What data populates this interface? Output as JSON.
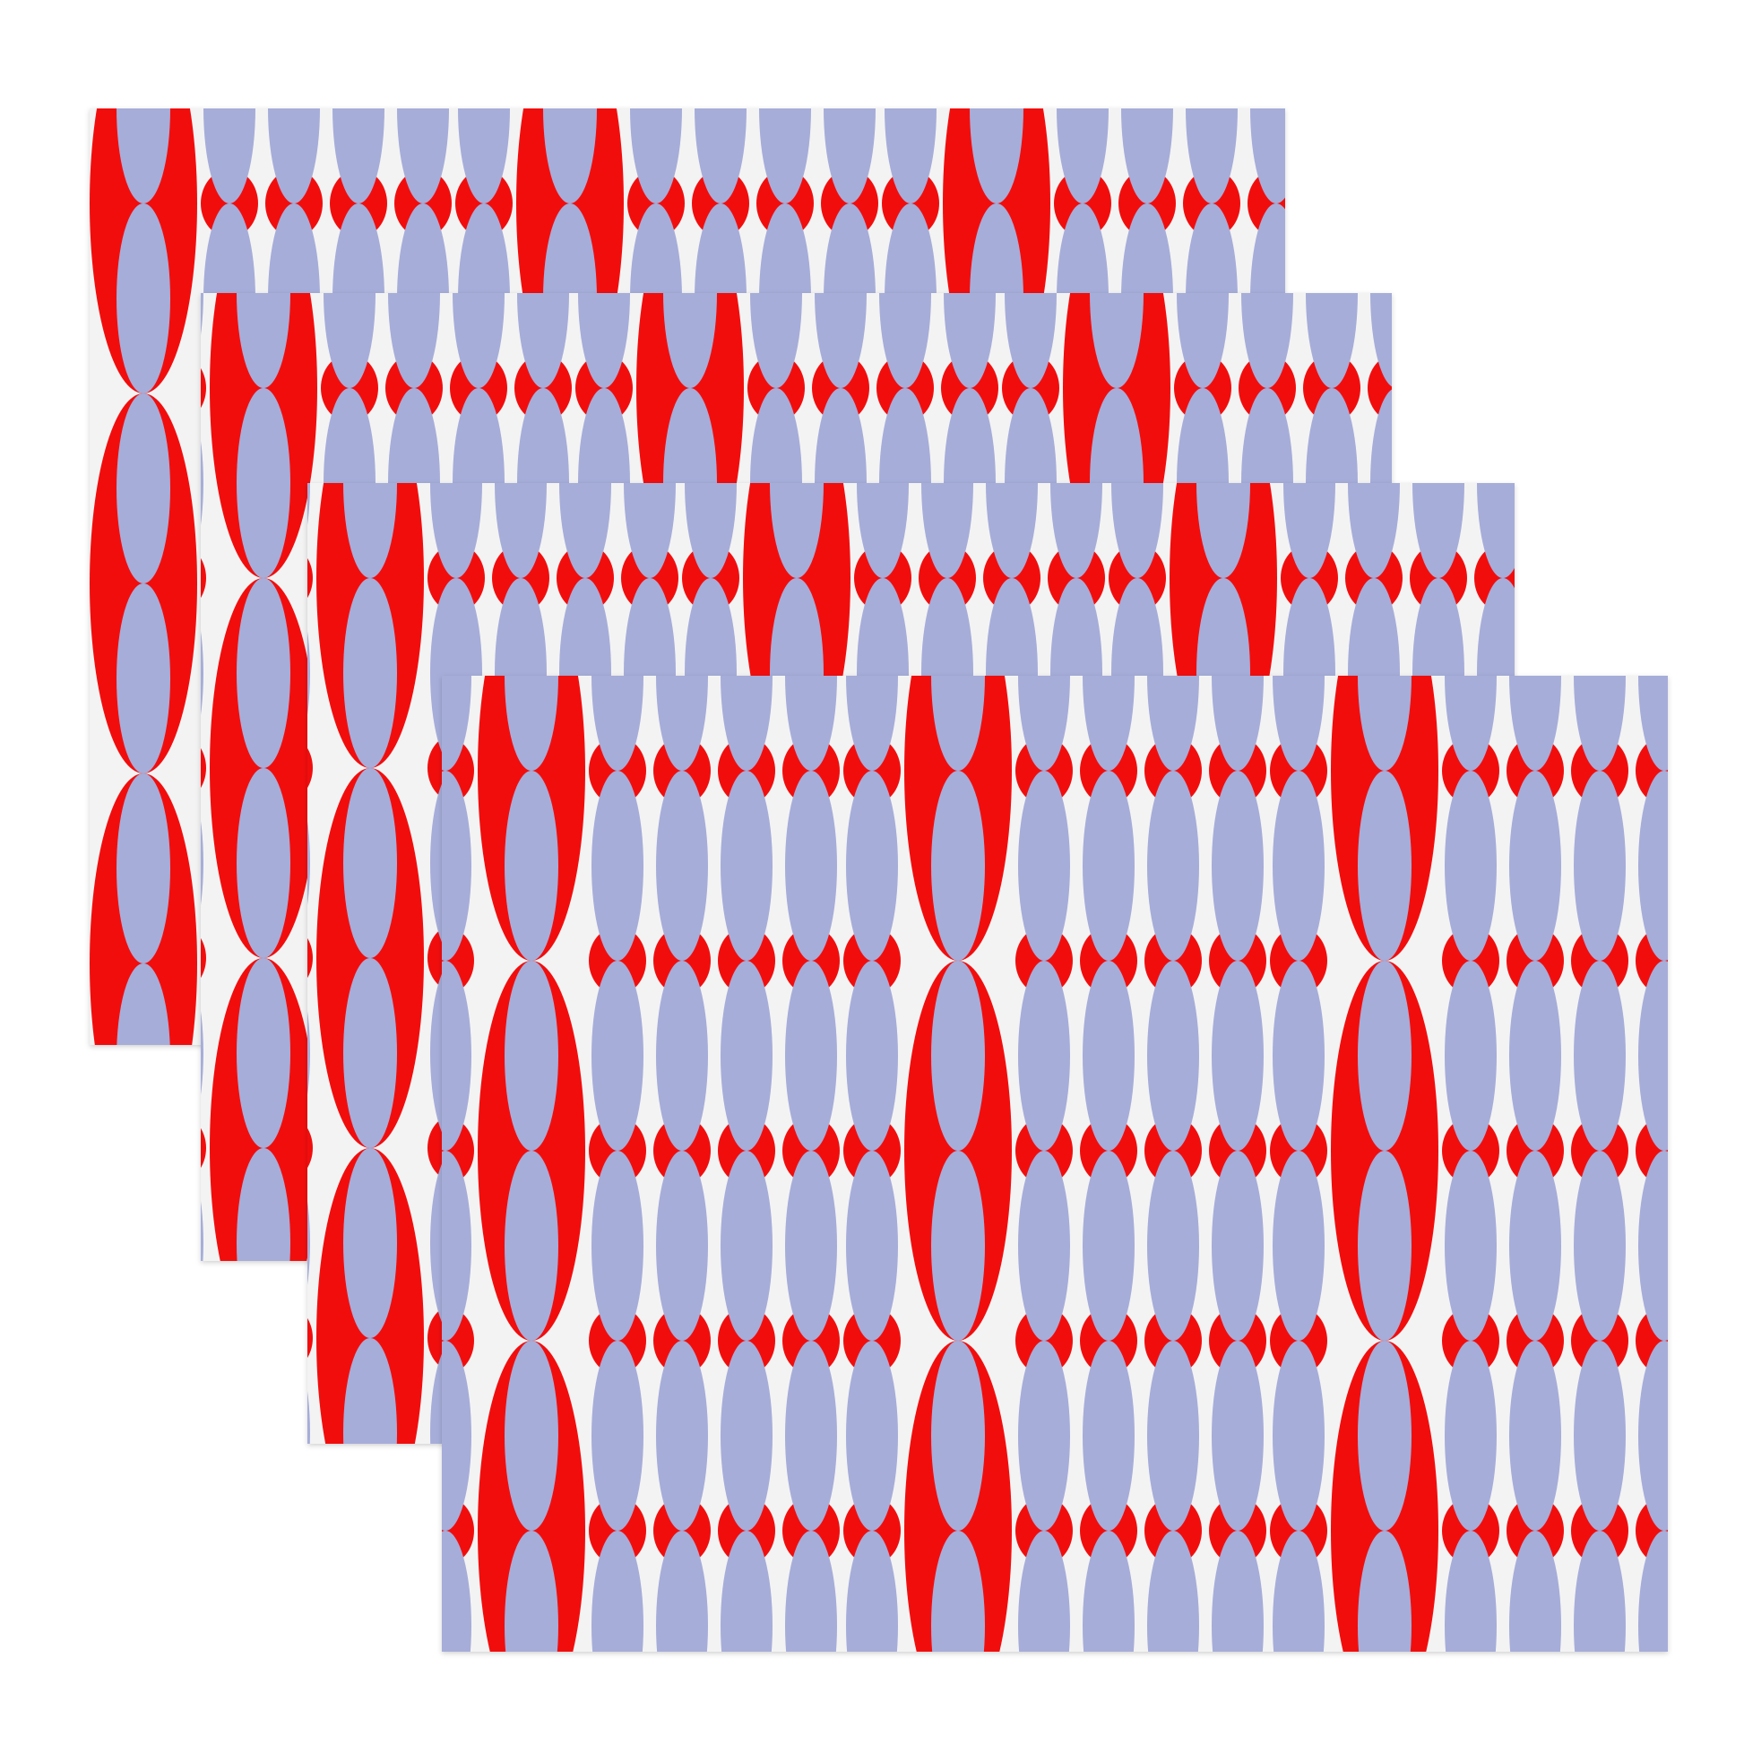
{
  "colors": {
    "red": "#f20d0d",
    "lavender": "#a6add9",
    "fabric": "#f3f3f3",
    "background": "#ffffff"
  }
}
